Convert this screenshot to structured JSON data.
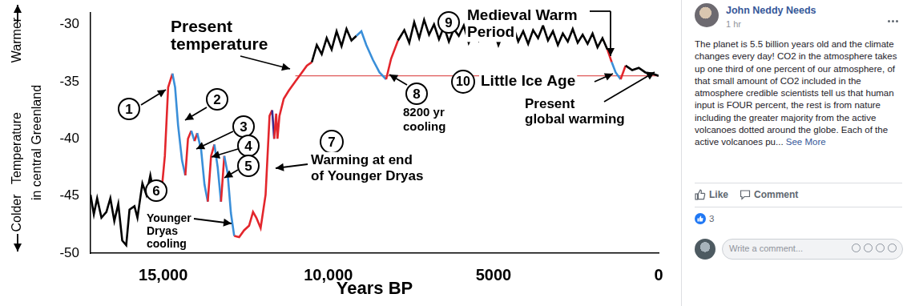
{
  "chart_data": {
    "type": "line",
    "x_label": "Years BP",
    "y_label": [
      "Temperature",
      "in central Greenland"
    ],
    "x": [
      17200,
      17100,
      17000,
      16870,
      16720,
      16600,
      16480,
      16360,
      16240,
      16120,
      16020,
      15870,
      15780,
      15630,
      15510,
      15390,
      15270,
      15150,
      15050,
      14950,
      14850,
      14720,
      14640,
      14550,
      14430,
      14330,
      14250,
      14150,
      14050,
      13970,
      13850,
      13750,
      13650,
      13550,
      13450,
      13350,
      13250,
      13150,
      13050,
      12950,
      12850,
      12700,
      12550,
      12400,
      12280,
      12180,
      12050,
      11900,
      11780,
      11700,
      11640,
      11580,
      11540,
      11480,
      11350,
      11200,
      11000,
      10800,
      10650,
      10500,
      10350,
      10200,
      10050,
      9900,
      9750,
      9600,
      9450,
      9300,
      9150,
      9000,
      8850,
      8650,
      8450,
      8250,
      8100,
      7890,
      7700,
      7550,
      7400,
      7250,
      7100,
      6950,
      6800,
      6650,
      6500,
      6350,
      6200,
      6050,
      5900,
      5750,
      5600,
      5450,
      5300,
      5150,
      5000,
      4850,
      4700,
      4550,
      4400,
      4250,
      4100,
      3950,
      3800,
      3650,
      3500,
      3350,
      3200,
      3050,
      2900,
      2750,
      2600,
      2450,
      2300,
      2150,
      2000,
      1850,
      1700,
      1550,
      1420,
      1300,
      1150,
      1000,
      800,
      600,
      400,
      200,
      0
    ],
    "series": [
      {
        "values": [
          -44.9,
          -46.6,
          -45.2,
          -46.9,
          -46.4,
          -45.2,
          -47.2,
          -45.7,
          -48.9,
          -49.3,
          -46.2,
          -45.9,
          -46.9,
          -43.9,
          -44.9,
          -43.2,
          -45.0,
          -45.2,
          -44.6,
          -41.5,
          -35.5,
          -34.3,
          -35.5,
          -38.8,
          -41.9,
          -43.2,
          -40.0,
          -39.3,
          -40.2,
          -39.5,
          -41.0,
          -44.0,
          -45.5,
          -41.5,
          -40.5,
          -42.5,
          -45.5,
          -41.5,
          -43.0,
          -46.5,
          -48.5,
          -48.6,
          -48.0,
          -47.6,
          -46.4,
          -46.9,
          -47.8,
          -44.9,
          -38.0,
          -37.5,
          -40.0,
          -37.8,
          -40.0,
          -38.0,
          -36.5,
          -35.8,
          -35.0,
          -34.2,
          -33.6,
          -33.3,
          -31.8,
          -32.6,
          -31.2,
          -32.2,
          -30.6,
          -31.9,
          -30.4,
          -31.4,
          -31.0,
          -30.6,
          -31.8,
          -33.1,
          -34.2,
          -34.8,
          -33.0,
          -31.4,
          -30.5,
          -31.6,
          -29.8,
          -31.2,
          -29.6,
          -30.9,
          -30.0,
          -31.3,
          -30.2,
          -31.5,
          -30.4,
          -31.0,
          -30.1,
          -31.6,
          -30.6,
          -31.4,
          -30.3,
          -31.2,
          -30.5,
          -31.8,
          -30.7,
          -31.3,
          -30.2,
          -31.5,
          -30.6,
          -31.7,
          -30.5,
          -31.2,
          -30.1,
          -31.4,
          -30.6,
          -31.8,
          -30.8,
          -31.5,
          -30.4,
          -31.6,
          -30.9,
          -31.7,
          -30.8,
          -32.0,
          -31.2,
          -32.2,
          -33.3,
          -34.2,
          -34.8,
          -33.6,
          -34.0,
          -33.8,
          -34.2,
          -34.3,
          -34.5
        ],
        "colors": [
          "#000000",
          "#000000",
          "#000000",
          "#000000",
          "#000000",
          "#000000",
          "#000000",
          "#000000",
          "#000000",
          "#000000",
          "#000000",
          "#000000",
          "#000000",
          "#000000",
          "#000000",
          "#000000",
          "#000000",
          "#e3262c",
          "#e3262c",
          "#e3262c",
          "#e3262c",
          "#3a8fd9",
          "#3a8fd9",
          "#3a8fd9",
          "#3a8fd9",
          "#e3262c",
          "#e3262c",
          "#3a8fd9",
          "#e3262c",
          "#3a8fd9",
          "#3a8fd9",
          "#3a8fd9",
          "#e3262c",
          "#e3262c",
          "#3a8fd9",
          "#3a8fd9",
          "#e3262c",
          "#3a8fd9",
          "#3a8fd9",
          "#3a8fd9",
          "#e3262c",
          "#e3262c",
          "#e3262c",
          "#e3262c",
          "#e3262c",
          "#e3262c",
          "#e3262c",
          "#e3262c",
          "#e3262c",
          "#3b2a8c",
          "#e3262c",
          "#e3262c",
          "#e3262c",
          "#e3262c",
          "#e3262c",
          "#e3262c",
          "#e3262c",
          "#e3262c",
          "#e3262c",
          "#000000",
          "#000000",
          "#000000",
          "#000000",
          "#000000",
          "#000000",
          "#000000",
          "#000000",
          "#000000",
          "#3a8fd9",
          "#3a8fd9",
          "#3a8fd9",
          "#3a8fd9",
          "#3a8fd9",
          "#e3262c",
          "#e3262c",
          "#000000",
          "#000000",
          "#000000",
          "#000000",
          "#000000",
          "#000000",
          "#000000",
          "#000000",
          "#000000",
          "#000000",
          "#000000",
          "#000000",
          "#000000",
          "#000000",
          "#000000",
          "#000000",
          "#000000",
          "#000000",
          "#000000",
          "#000000",
          "#000000",
          "#000000",
          "#000000",
          "#000000",
          "#000000",
          "#000000",
          "#000000",
          "#000000",
          "#000000",
          "#000000",
          "#000000",
          "#000000",
          "#000000",
          "#000000",
          "#000000",
          "#000000",
          "#000000",
          "#000000",
          "#000000",
          "#000000",
          "#000000",
          "#000000",
          "#e3262c",
          "#3a8fd9",
          "#3a8fd9",
          "#e3262c",
          "#000000",
          "#000000",
          "#000000",
          "#000000",
          "#000000",
          "#000000"
        ]
      }
    ],
    "reference_line": {
      "y": -34.5,
      "x": [
        11000,
        0
      ],
      "color": "#e05a5a"
    },
    "xlim": [
      17200,
      0
    ],
    "xticks": [
      {
        "value": 15000,
        "label": "15,000"
      },
      {
        "value": 10000,
        "label": "10,000"
      },
      5000,
      0
    ],
    "ylim": [
      -50,
      -29
    ],
    "yticks": [
      -30,
      -35,
      -40,
      -45,
      -50
    ],
    "grid": false,
    "annotations": [
      "Warmer",
      "Colder",
      [
        "Present",
        "temperature"
      ],
      "1",
      "2",
      "3",
      "4",
      "5",
      "6",
      [
        "Younger",
        "Dryas",
        "cooling"
      ],
      "7",
      [
        "Warming at end",
        "of Younger Dryas"
      ],
      "8",
      [
        "8200 yr",
        "cooling"
      ],
      "9",
      [
        "Medieval Warm",
        "Period"
      ],
      "10",
      "Little Ice Age",
      [
        "Present",
        "global warming"
      ]
    ]
  },
  "post": {
    "author": "John Neddy Needs",
    "time": "1 hr",
    "text": "The planet is 5.5 billion years old and the climate changes every day! CO2 in the atmosphere takes up one third of one percent of our atmosphere, of that small amount of CO2 included in the atmosphere credible scientists tell us that human input is FOUR percent, the rest is from nature including the greater majority from the active volcanoes dotted around the globe. Each of the active volcanoes pu...",
    "see_more": "See More",
    "actions": [
      "Like",
      "Comment"
    ],
    "reactions": 3,
    "comment_placeholder": "Write a comment..."
  }
}
